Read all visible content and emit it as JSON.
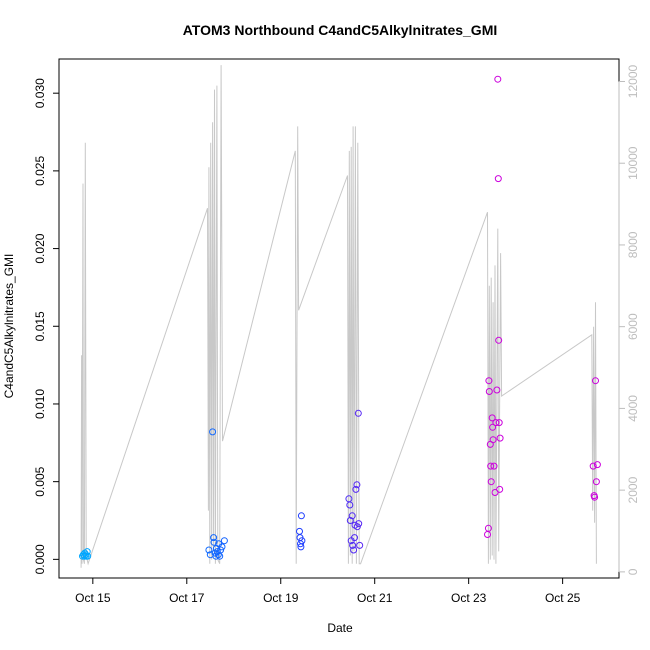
{
  "chart_data": {
    "type": "scatter",
    "title": "ATOM3 Northbound C4andC5Alkylnitrates_GMI",
    "xlabel": "Date",
    "ylabel": "C4andC5Alkylnitrates_GMI",
    "x_tick_labels": [
      "Oct 15",
      "Oct 17",
      "Oct 19",
      "Oct 21",
      "Oct 23",
      "Oct 25"
    ],
    "x_tick_values": [
      15,
      17,
      19,
      21,
      23,
      25
    ],
    "y_tick_labels": [
      "0.000",
      "0.005",
      "0.010",
      "0.015",
      "0.020",
      "0.025",
      "0.030"
    ],
    "y_tick_values": [
      0,
      0.005,
      0.01,
      0.015,
      0.02,
      0.025,
      0.03
    ],
    "y2_tick_labels": [
      "0",
      "2000",
      "4000",
      "6000",
      "8000",
      "10000",
      "12000"
    ],
    "y2_tick_values": [
      0,
      2000,
      4000,
      6000,
      8000,
      10000,
      12000
    ],
    "xlim": [
      14.28,
      26.2
    ],
    "ylim": [
      -0.0012,
      0.0322
    ],
    "y2lim": [
      -150,
      12550
    ],
    "colors": {
      "altitude_line": "#c8c8c8",
      "early": "#00aaff",
      "mid": "#1e3cff",
      "late": "#cc00dd",
      "axis": "#000000",
      "right_axis": "#bdbdbd"
    },
    "series": [
      {
        "values": [
          {
            "x": 14.78,
            "y": 0.0002
          },
          {
            "x": 14.8,
            "y": 0.0003
          },
          {
            "x": 14.82,
            "y": 0.0002
          },
          {
            "x": 14.83,
            "y": 0.0004
          },
          {
            "x": 14.85,
            "y": 0.0003
          },
          {
            "x": 14.86,
            "y": 0.0002
          },
          {
            "x": 14.88,
            "y": 0.0005
          },
          {
            "x": 14.89,
            "y": 0.0002
          },
          {
            "x": 17.5,
            "y": 0.0003
          },
          {
            "x": 17.55,
            "y": 0.0082
          },
          {
            "x": 17.57,
            "y": 0.0014
          },
          {
            "x": 17.58,
            "y": 0.0011
          },
          {
            "x": 17.6,
            "y": 0.0004
          },
          {
            "x": 17.62,
            "y": 0.0002
          },
          {
            "x": 17.63,
            "y": 0.0007
          },
          {
            "x": 17.65,
            "y": 0.0005
          },
          {
            "x": 17.67,
            "y": 0.0003
          },
          {
            "x": 17.68,
            "y": 0.001
          },
          {
            "x": 17.7,
            "y": 0.0002
          },
          {
            "x": 17.72,
            "y": 0.0006
          },
          {
            "x": 17.75,
            "y": 0.0008
          },
          {
            "x": 17.8,
            "y": 0.0012
          },
          {
            "x": 17.47,
            "y": 0.0006
          },
          {
            "x": 19.4,
            "y": 0.0018
          },
          {
            "x": 19.41,
            "y": 0.0014
          },
          {
            "x": 19.42,
            "y": 0.001
          },
          {
            "x": 19.43,
            "y": 0.0008
          },
          {
            "x": 19.44,
            "y": 0.0028
          },
          {
            "x": 19.45,
            "y": 0.0012
          },
          {
            "x": 20.45,
            "y": 0.0039
          },
          {
            "x": 20.47,
            "y": 0.0035
          },
          {
            "x": 20.48,
            "y": 0.0025
          },
          {
            "x": 20.5,
            "y": 0.0012
          },
          {
            "x": 20.52,
            "y": 0.0028
          },
          {
            "x": 20.53,
            "y": 0.0009
          },
          {
            "x": 20.55,
            "y": 0.0006
          },
          {
            "x": 20.57,
            "y": 0.0014
          },
          {
            "x": 20.58,
            "y": 0.0022
          },
          {
            "x": 20.6,
            "y": 0.0045
          },
          {
            "x": 20.62,
            "y": 0.0048
          },
          {
            "x": 20.63,
            "y": 0.0021
          },
          {
            "x": 20.65,
            "y": 0.0094
          },
          {
            "x": 20.66,
            "y": 0.0023
          },
          {
            "x": 20.68,
            "y": 0.0009
          },
          {
            "x": 23.4,
            "y": 0.0016
          },
          {
            "x": 23.42,
            "y": 0.002
          },
          {
            "x": 23.43,
            "y": 0.0115
          },
          {
            "x": 23.44,
            "y": 0.0108
          },
          {
            "x": 23.46,
            "y": 0.0074
          },
          {
            "x": 23.47,
            "y": 0.006
          },
          {
            "x": 23.48,
            "y": 0.005
          },
          {
            "x": 23.5,
            "y": 0.0091
          },
          {
            "x": 23.51,
            "y": 0.0085
          },
          {
            "x": 23.52,
            "y": 0.0077
          },
          {
            "x": 23.54,
            "y": 0.006
          },
          {
            "x": 23.56,
            "y": 0.0043
          },
          {
            "x": 23.58,
            "y": 0.0088
          },
          {
            "x": 23.6,
            "y": 0.0109
          },
          {
            "x": 23.62,
            "y": 0.0309
          },
          {
            "x": 23.63,
            "y": 0.0245
          },
          {
            "x": 23.64,
            "y": 0.0141
          },
          {
            "x": 23.65,
            "y": 0.0088
          },
          {
            "x": 23.66,
            "y": 0.0045
          },
          {
            "x": 23.67,
            "y": 0.0078
          },
          {
            "x": 25.65,
            "y": 0.006
          },
          {
            "x": 25.67,
            "y": 0.0041
          },
          {
            "x": 25.68,
            "y": 0.004
          },
          {
            "x": 25.7,
            "y": 0.0115
          },
          {
            "x": 25.72,
            "y": 0.005
          },
          {
            "x": 25.74,
            "y": 0.0061
          }
        ]
      }
    ],
    "altitude_series": {
      "axis": "right",
      "values": [
        {
          "x": 14.75,
          "y": 100
        },
        {
          "x": 14.76,
          "y": 5300
        },
        {
          "x": 14.77,
          "y": 200
        },
        {
          "x": 14.79,
          "y": 9500
        },
        {
          "x": 14.8,
          "y": 300
        },
        {
          "x": 14.82,
          "y": 200
        },
        {
          "x": 14.84,
          "y": 10500
        },
        {
          "x": 14.86,
          "y": 400
        },
        {
          "x": 14.9,
          "y": 200
        },
        {
          "x": 17.44,
          "y": 8900
        },
        {
          "x": 17.46,
          "y": 1500
        },
        {
          "x": 17.47,
          "y": 9900
        },
        {
          "x": 17.49,
          "y": 200
        },
        {
          "x": 17.51,
          "y": 10500
        },
        {
          "x": 17.53,
          "y": 300
        },
        {
          "x": 17.55,
          "y": 11000
        },
        {
          "x": 17.57,
          "y": 500
        },
        {
          "x": 17.59,
          "y": 11800
        },
        {
          "x": 17.61,
          "y": 200
        },
        {
          "x": 17.64,
          "y": 11900
        },
        {
          "x": 17.66,
          "y": 300
        },
        {
          "x": 17.7,
          "y": 200
        },
        {
          "x": 17.73,
          "y": 12400
        },
        {
          "x": 17.76,
          "y": 3200
        },
        {
          "x": 19.31,
          "y": 10300
        },
        {
          "x": 19.33,
          "y": 200
        },
        {
          "x": 19.36,
          "y": 10900
        },
        {
          "x": 19.38,
          "y": 6400
        },
        {
          "x": 20.42,
          "y": 9700
        },
        {
          "x": 20.44,
          "y": 200
        },
        {
          "x": 20.46,
          "y": 10300
        },
        {
          "x": 20.48,
          "y": 400
        },
        {
          "x": 20.5,
          "y": 10400
        },
        {
          "x": 20.52,
          "y": 200
        },
        {
          "x": 20.54,
          "y": 10900
        },
        {
          "x": 20.56,
          "y": 500
        },
        {
          "x": 20.59,
          "y": 10900
        },
        {
          "x": 20.61,
          "y": 200
        },
        {
          "x": 20.64,
          "y": 10500
        },
        {
          "x": 20.67,
          "y": 200
        },
        {
          "x": 20.7,
          "y": 200
        },
        {
          "x": 23.4,
          "y": 8800
        },
        {
          "x": 23.42,
          "y": 200
        },
        {
          "x": 23.44,
          "y": 7000
        },
        {
          "x": 23.46,
          "y": 300
        },
        {
          "x": 23.48,
          "y": 7200
        },
        {
          "x": 23.5,
          "y": 400
        },
        {
          "x": 23.52,
          "y": 6600
        },
        {
          "x": 23.54,
          "y": 300
        },
        {
          "x": 23.56,
          "y": 7500
        },
        {
          "x": 23.58,
          "y": 200
        },
        {
          "x": 23.62,
          "y": 8400
        },
        {
          "x": 23.64,
          "y": 500
        },
        {
          "x": 23.68,
          "y": 7800
        },
        {
          "x": 23.7,
          "y": 4300
        },
        {
          "x": 25.62,
          "y": 5800
        },
        {
          "x": 25.64,
          "y": 1500
        },
        {
          "x": 25.66,
          "y": 6000
        },
        {
          "x": 25.68,
          "y": 1200
        },
        {
          "x": 25.7,
          "y": 6600
        },
        {
          "x": 25.72,
          "y": 200
        }
      ]
    },
    "grid": false,
    "legend": "none"
  }
}
